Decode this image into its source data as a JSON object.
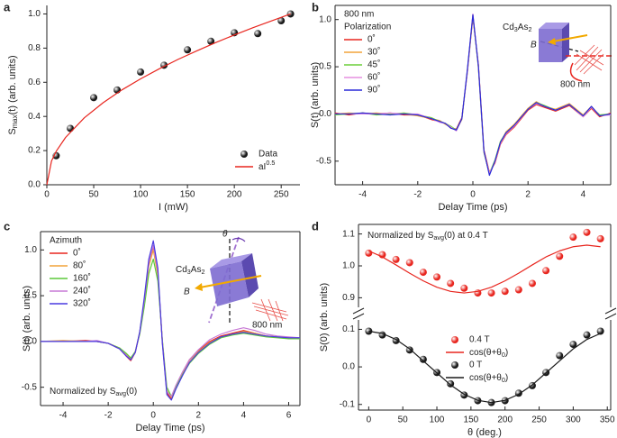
{
  "chart_data": [
    {
      "panel_label": "a",
      "type": "scatter",
      "frame": false,
      "xlabel": "I (mW)",
      "ylabel": [
        "S",
        {
          "sub": "max"
        },
        "(t) (arb. units)"
      ],
      "xlim": [
        0,
        270
      ],
      "xticks": [
        0,
        50,
        100,
        150,
        200,
        250
      ],
      "ylim": [
        0,
        1.05
      ],
      "yticks": [
        {
          "value": 0,
          "label": "0.0"
        },
        0.2,
        0.4,
        0.6,
        0.8,
        {
          "value": 1,
          "label": "1.0"
        }
      ],
      "legend": "lower right",
      "series": [
        {
          "name": "Data",
          "type": "scatter",
          "color": "#1a1a1a",
          "x": [
            10,
            25,
            50,
            75,
            100,
            125,
            150,
            175,
            200,
            225,
            250,
            260
          ],
          "values": [
            0.17,
            0.33,
            0.51,
            0.555,
            0.66,
            0.7,
            0.79,
            0.84,
            0.89,
            0.885,
            0.96,
            1.0
          ]
        },
        {
          "name": [
            "aI",
            {
              "sup": "0.5"
            }
          ],
          "type": "line",
          "color": "#e8261f",
          "x": [
            0,
            5,
            10,
            20,
            40,
            60,
            80,
            100,
            120,
            140,
            160,
            180,
            200,
            220,
            240,
            260
          ],
          "values": [
            0,
            0.139,
            0.196,
            0.277,
            0.392,
            0.48,
            0.555,
            0.62,
            0.679,
            0.734,
            0.784,
            0.832,
            0.877,
            0.92,
            0.96,
            1.0
          ]
        }
      ]
    },
    {
      "panel_label": "b",
      "type": "line",
      "frame": true,
      "xlabel": "Delay Time (ps)",
      "ylabel": "S(t) (arb. units)",
      "xlim": [
        -5,
        5
      ],
      "xticks": [
        -4,
        -2,
        0,
        2,
        4
      ],
      "ylim": [
        -0.75,
        1.15
      ],
      "yticks": [
        -0.5,
        {
          "value": 0,
          "label": "0.0"
        },
        0.5,
        {
          "value": 1,
          "label": "1.0"
        }
      ],
      "legend": "upper left",
      "legend_title": [
        "800 nm",
        "Polarization"
      ],
      "inset": {
        "material": [
          "Cd",
          {
            "sub": "3"
          },
          "As",
          {
            "sub": "2"
          }
        ],
        "field": "B",
        "laser": "800 nm"
      },
      "x": [
        -5,
        -4.5,
        -4,
        -3.5,
        -3,
        -2.5,
        -2,
        -1.5,
        -1.2,
        -1,
        -0.8,
        -0.6,
        -0.4,
        -0.2,
        0,
        0.2,
        0.4,
        0.6,
        0.8,
        1,
        1.2,
        1.5,
        2,
        2.3,
        2.6,
        3,
        3.5,
        4,
        4.3,
        4.6,
        5
      ],
      "series": [
        {
          "name": "0˚",
          "color": "#e8261f",
          "values": [
            0.01,
            -0.01,
            0.01,
            0,
            0.01,
            -0.01,
            -0.01,
            -0.06,
            -0.08,
            -0.1,
            -0.15,
            -0.16,
            -0.04,
            0.44,
            1.03,
            0.52,
            -0.38,
            -0.62,
            -0.52,
            -0.32,
            -0.22,
            -0.14,
            0.04,
            0.1,
            0.07,
            0.03,
            0.09,
            -0.03,
            0.06,
            -0.03,
            0.01
          ]
        },
        {
          "name": "30˚",
          "color": "#f2a33a",
          "values": [
            0,
            0.01,
            0,
            0.01,
            0,
            0,
            -0.02,
            -0.05,
            -0.07,
            -0.11,
            -0.14,
            -0.17,
            -0.06,
            0.46,
            1.04,
            0.5,
            -0.4,
            -0.64,
            -0.5,
            -0.3,
            -0.19,
            -0.11,
            0.06,
            0.13,
            0.08,
            0.05,
            0.11,
            -0.01,
            0.08,
            -0.02,
            0
          ]
        },
        {
          "name": "45˚",
          "color": "#6ccf3a",
          "values": [
            -0.01,
            0,
            0.01,
            -0.01,
            0,
            0.01,
            -0.01,
            -0.04,
            -0.08,
            -0.1,
            -0.13,
            -0.17,
            -0.05,
            0.45,
            1.05,
            0.49,
            -0.41,
            -0.63,
            -0.49,
            -0.29,
            -0.2,
            -0.12,
            0.05,
            0.12,
            0.09,
            0.04,
            0.1,
            -0.02,
            0.07,
            -0.01,
            0
          ]
        },
        {
          "name": "60˚",
          "color": "#e58fe0",
          "values": [
            0,
            0,
            0,
            0,
            0.01,
            0,
            0,
            -0.05,
            -0.09,
            -0.1,
            -0.14,
            -0.18,
            -0.05,
            0.45,
            1.06,
            0.5,
            -0.4,
            -0.63,
            -0.51,
            -0.31,
            -0.21,
            -0.13,
            0.05,
            0.11,
            0.08,
            0.04,
            0.1,
            -0.03,
            0.07,
            -0.02,
            -0.01
          ]
        },
        {
          "name": "90˚",
          "color": "#2a2ad8",
          "values": [
            0,
            0,
            0.01,
            0,
            -0.01,
            0,
            -0.01,
            -0.05,
            -0.08,
            -0.1,
            -0.15,
            -0.17,
            -0.05,
            0.47,
            1.05,
            0.51,
            -0.39,
            -0.65,
            -0.5,
            -0.3,
            -0.2,
            -0.12,
            0.05,
            0.12,
            0.08,
            0.04,
            0.1,
            -0.02,
            0.08,
            -0.02,
            0
          ]
        }
      ]
    },
    {
      "panel_label": "c",
      "type": "line",
      "frame": true,
      "xlabel": "Delay Time (ps)",
      "ylabel": "S(t) (arb. units)",
      "xlim": [
        -5,
        6.5
      ],
      "xticks": [
        -4,
        -2,
        0,
        2,
        4,
        6
      ],
      "ylim": [
        -0.7,
        1.2
      ],
      "yticks": [
        -0.5,
        {
          "value": 0,
          "label": "0.0"
        },
        0.5,
        {
          "value": 1,
          "label": "1.0"
        }
      ],
      "legend": "upper left",
      "legend_title": [
        "Azimuth"
      ],
      "annotation": [
        "Normalized by S",
        {
          "sub": "avg"
        },
        "(0)"
      ],
      "inset": {
        "material": [
          "Cd",
          {
            "sub": "3"
          },
          "As",
          {
            "sub": "2"
          }
        ],
        "angle": "θ",
        "field": "B",
        "laser": "800 nm"
      },
      "x": [
        -5,
        -4,
        -3,
        -2.5,
        -2,
        -1.5,
        -1.2,
        -1,
        -0.8,
        -0.6,
        -0.4,
        -0.2,
        0,
        0.2,
        0.4,
        0.6,
        0.8,
        1,
        1.3,
        1.6,
        2,
        2.5,
        3,
        3.5,
        4,
        4.5,
        5,
        5.5,
        6,
        6.5
      ],
      "series": [
        {
          "name": "0˚",
          "color": "#e8261f",
          "values": [
            0,
            0,
            0.01,
            0,
            -0.02,
            -0.08,
            -0.16,
            -0.21,
            -0.12,
            0.1,
            0.44,
            0.84,
            1.02,
            0.74,
            0,
            -0.56,
            -0.63,
            -0.5,
            -0.34,
            -0.2,
            -0.1,
            0,
            0.06,
            0.09,
            0.12,
            0.09,
            0.06,
            0.05,
            0.04,
            0.03
          ]
        },
        {
          "name": "80˚",
          "color": "#f2a33a",
          "values": [
            0,
            0.01,
            0,
            0,
            -0.02,
            -0.07,
            -0.14,
            -0.19,
            -0.11,
            0.1,
            0.43,
            0.82,
            1.0,
            0.72,
            0.01,
            -0.54,
            -0.61,
            -0.49,
            -0.34,
            -0.21,
            -0.11,
            -0.01,
            0.05,
            0.08,
            0.11,
            0.09,
            0.06,
            0.05,
            0.04,
            0.03
          ]
        },
        {
          "name": "160˚",
          "color": "#5cc83a",
          "values": [
            0,
            0,
            0,
            0,
            -0.02,
            -0.07,
            -0.13,
            -0.18,
            -0.11,
            0.08,
            0.38,
            0.74,
            0.9,
            0.66,
            0.02,
            -0.5,
            -0.6,
            -0.5,
            -0.36,
            -0.24,
            -0.13,
            -0.03,
            0.04,
            0.07,
            0.09,
            0.07,
            0.05,
            0.04,
            0.03,
            0.03
          ]
        },
        {
          "name": "240˚",
          "color": "#c77ad6",
          "values": [
            0,
            0,
            0,
            0.01,
            -0.02,
            -0.08,
            -0.15,
            -0.2,
            -0.12,
            0.1,
            0.45,
            0.86,
            1.05,
            0.76,
            0,
            -0.55,
            -0.6,
            -0.48,
            -0.33,
            -0.2,
            -0.09,
            0.02,
            0.08,
            0.12,
            0.15,
            0.12,
            0.08,
            0.06,
            0.05,
            0.04
          ]
        },
        {
          "name": "320˚",
          "color": "#4a3ae0",
          "values": [
            0,
            0,
            0,
            0,
            -0.02,
            -0.08,
            -0.16,
            -0.2,
            -0.12,
            0.11,
            0.48,
            0.9,
            1.1,
            0.8,
            -0.02,
            -0.58,
            -0.64,
            -0.52,
            -0.37,
            -0.23,
            -0.12,
            -0.02,
            0.05,
            0.08,
            0.1,
            0.08,
            0.06,
            0.05,
            0.04,
            0.04
          ]
        }
      ]
    },
    {
      "panel_label": "d",
      "type": "scatter",
      "frame": true,
      "broken_axis": true,
      "xlabel": "θ (deg.)",
      "ylabel": "S(0) (arb. units)",
      "xlim": [
        -15,
        355
      ],
      "xticks": [
        0,
        50,
        100,
        150,
        200,
        250,
        300,
        350
      ],
      "segments": {
        "upper": {
          "ylim": [
            0.87,
            1.13
          ],
          "yticks": [
            0.9,
            {
              "value": 1,
              "label": "1.0"
            },
            1.1
          ]
        },
        "lower": {
          "ylim": [
            -0.115,
            0.125
          ],
          "yticks": [
            -0.1,
            {
              "value": 0,
              "label": "0.0"
            },
            0.1
          ]
        }
      },
      "legend": "center",
      "annotation": [
        "Normalized by S",
        {
          "sub": "avg"
        },
        "(0) at 0.4 T"
      ],
      "x": [
        0,
        20,
        40,
        60,
        80,
        100,
        120,
        140,
        160,
        180,
        200,
        220,
        240,
        260,
        280,
        300,
        320,
        340
      ],
      "series": [
        {
          "name": "0.4 T",
          "type": "scatter",
          "segment": "upper",
          "color": "#e8261f",
          "values": [
            1.04,
            1.035,
            1.02,
            1.01,
            0.98,
            0.965,
            0.945,
            0.93,
            0.915,
            0.915,
            0.92,
            0.925,
            0.945,
            0.985,
            1.03,
            1.09,
            1.105,
            1.085
          ]
        },
        {
          "name": [
            "cos(θ+θ",
            {
              "sub": "0"
            },
            ")"
          ],
          "type": "line",
          "segment": "upper",
          "color": "#e8261f",
          "values": [
            1.047,
            1.028,
            1.003,
            0.977,
            0.953,
            0.933,
            0.92,
            0.915,
            0.92,
            0.933,
            0.953,
            0.977,
            1.003,
            1.028,
            1.047,
            1.06,
            1.065,
            1.06
          ]
        },
        {
          "name": "0 T",
          "type": "scatter",
          "segment": "lower",
          "color": "#1a1a1a",
          "values": [
            0.095,
            0.085,
            0.07,
            0.045,
            0.02,
            -0.015,
            -0.045,
            -0.075,
            -0.09,
            -0.095,
            -0.09,
            -0.07,
            -0.05,
            -0.015,
            0.03,
            0.06,
            0.085,
            0.095
          ]
        },
        {
          "name": [
            "cos(θ+θ",
            {
              "sub": "0"
            },
            ")"
          ],
          "type": "line",
          "segment": "lower",
          "color": "#1a1a1a",
          "values": [
            0.095,
            0.089,
            0.073,
            0.048,
            0.016,
            -0.016,
            -0.048,
            -0.073,
            -0.089,
            -0.095,
            -0.089,
            -0.073,
            -0.048,
            -0.016,
            0.016,
            0.048,
            0.073,
            0.089
          ]
        }
      ]
    }
  ]
}
